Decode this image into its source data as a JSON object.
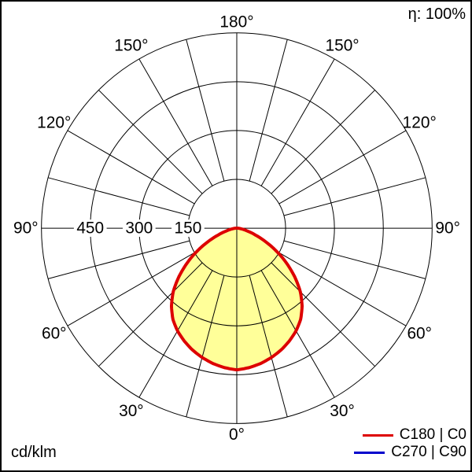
{
  "page": {
    "efficiency": "η: 100%",
    "unit": "cd/klm"
  },
  "legend": {
    "position": "bottom-right",
    "items": [
      {
        "label": "C180 | C0",
        "color": "#dd0000"
      },
      {
        "label": "C270 | C90",
        "color": "#0000cc"
      }
    ]
  },
  "chart_data": {
    "type": "line",
    "subtype": "polar-luminous-intensity-distribution",
    "units": "cd/klm",
    "efficiency_label": "η: 100%",
    "radial_ticks": [
      150,
      300,
      450
    ],
    "radial_max": 600,
    "angle_grid_step_deg": 15,
    "angle_labels_deg": [
      0,
      30,
      60,
      90,
      120,
      150,
      180
    ],
    "zero_direction": "down",
    "grid": true,
    "series": [
      {
        "name": "C180 | C0",
        "color": "#dd0000",
        "fill": "#ffff99",
        "symmetric": true,
        "gamma_deg": [
          0,
          5,
          10,
          15,
          20,
          25,
          30,
          35,
          40,
          45,
          50,
          55,
          60,
          65,
          70,
          75,
          80,
          85,
          90,
          95
        ],
        "intensity": [
          435,
          430,
          422,
          411,
          398,
          382,
          364,
          342,
          312,
          276,
          232,
          186,
          140,
          96,
          60,
          34,
          17,
          8,
          3,
          0
        ]
      },
      {
        "name": "C270 | C90",
        "color": "#0000cc",
        "coincident_with": "C180 | C0"
      }
    ]
  }
}
